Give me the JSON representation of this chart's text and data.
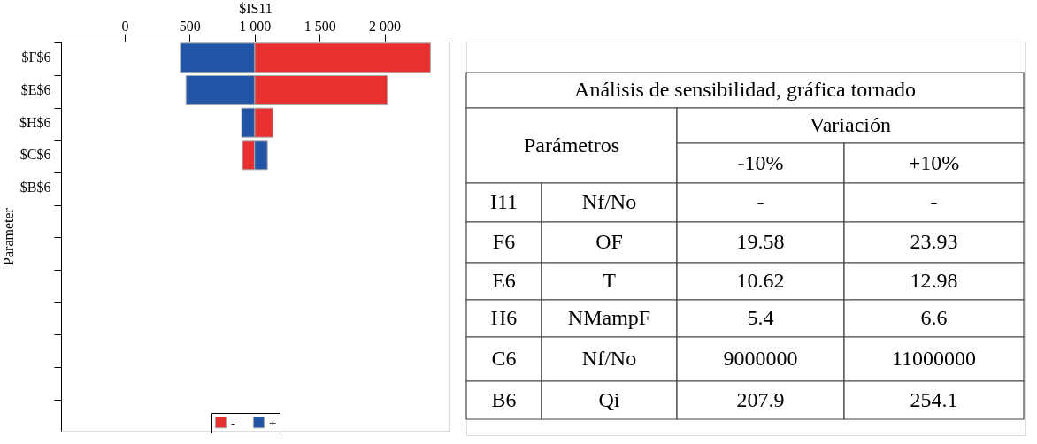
{
  "chart_data": [
    {
      "type": "bar",
      "orientation": "horizontal",
      "xlabel": "$IS11",
      "ylabel": "Parameter",
      "categories": [
        "$F$6",
        "$E$6",
        "$H$6",
        "$C$6",
        "$B$6",
        null,
        null,
        null,
        null,
        null,
        null,
        null
      ],
      "series": [
        {
          "name": "-",
          "color": "#e83030",
          "base": [
            1000,
            1000,
            1000,
            907,
            null,
            null,
            null,
            null,
            null,
            null,
            null,
            null
          ],
          "values": [
            1353,
            1021,
            140,
            93,
            null,
            null,
            null,
            null,
            null,
            null,
            null,
            null
          ]
        },
        {
          "name": "+",
          "color": "#2255a5",
          "base": [
            428,
            472,
            900,
            1000,
            null,
            null,
            null,
            null,
            null,
            null,
            null,
            null
          ],
          "values": [
            572,
            528,
            100,
            98,
            null,
            null,
            null,
            null,
            null,
            null,
            null,
            null
          ]
        }
      ],
      "xlim": [
        -490,
        2500
      ],
      "xticks": [
        0,
        500,
        {
          "value": 1000,
          "label": "1 000"
        },
        {
          "value": 1500,
          "label": "1 500"
        },
        {
          "value": 2000,
          "label": "2 000"
        }
      ],
      "grid": false,
      "legend": "bottom"
    },
    {
      "type": "other",
      "title": "Análisis de sensibilidad, gráfica tornado",
      "annotations": [
        "Parámetros",
        "Variación",
        "-10%",
        "+10%",
        "I11",
        "Nf/No",
        "-",
        "-",
        "F6",
        "OF",
        "19.58",
        "23.93",
        "E6",
        "T",
        "10.62",
        "12.98",
        "H6",
        "NMampF",
        "5.4",
        "6.6",
        "C6",
        "Nf/No",
        "9000000",
        "11000000",
        "B6",
        "Qi",
        "207.9",
        "254.1"
      ]
    }
  ]
}
